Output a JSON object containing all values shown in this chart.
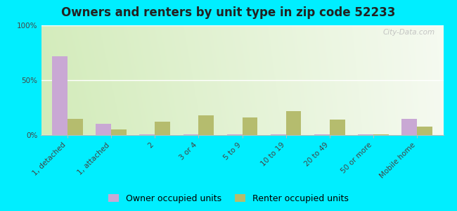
{
  "title": "Owners and renters by unit type in zip code 52233",
  "categories": [
    "1, detached",
    "1, attached",
    "2",
    "3 or 4",
    "5 to 9",
    "10 to 19",
    "20 to 49",
    "50 or more",
    "Mobile home"
  ],
  "owner_values": [
    72,
    10,
    0.5,
    0.5,
    0.5,
    0.5,
    0.5,
    0.5,
    15
  ],
  "renter_values": [
    15,
    5,
    12,
    18,
    16,
    22,
    14,
    0.5,
    8
  ],
  "owner_color": "#c9a8d4",
  "renter_color": "#b5bc6e",
  "outer_bg": "#00eeff",
  "ylim": [
    0,
    100
  ],
  "yticks": [
    0,
    50,
    100
  ],
  "ytick_labels": [
    "0%",
    "50%",
    "100%"
  ],
  "bar_width": 0.35,
  "legend_owner": "Owner occupied units",
  "legend_renter": "Renter occupied units",
  "watermark": "City-Data.com",
  "title_fontsize": 12,
  "tick_fontsize": 7.5,
  "legend_fontsize": 9
}
